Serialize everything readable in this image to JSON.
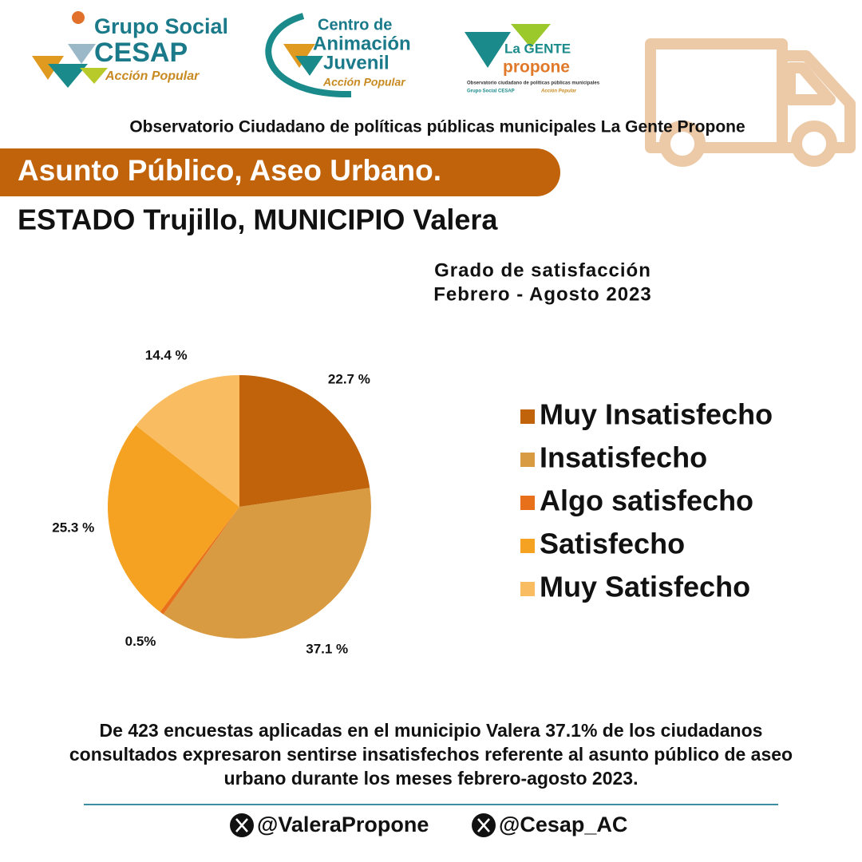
{
  "header": {
    "logo_cesap": [
      "Grupo Social",
      "CESAP",
      "Acción Popular"
    ],
    "logo_caj": [
      "Centro de",
      "Animación",
      "Juvenil",
      "Acción Popular"
    ],
    "logo_lgp": [
      "La GENTE",
      "propone",
      "Observatorio ciudadano de políticas públicas municipales",
      "Grupo Social CESAP",
      "Acción Popular"
    ],
    "observatory": "Observatorio Ciudadano de políticas públicas municipales La Gente Propone"
  },
  "banner": "Asunto Público, Aseo Urbano.",
  "location": "ESTADO Trujillo, MUNICIPIO Valera",
  "chart_data": {
    "type": "pie",
    "title": "Grado de satisfacción",
    "subtitle": "Febrero - Agosto 2023",
    "categories": [
      "Muy Insatisfecho",
      "Insatisfecho",
      "Algo satisfecho",
      "Satisfecho",
      "Muy Satisfecho"
    ],
    "values": [
      22.7,
      37.1,
      0.5,
      25.3,
      14.4
    ],
    "value_labels": [
      "22.7 %",
      "37.1 %",
      "0.5%",
      "25.3 %",
      "14.4 %"
    ],
    "colors": [
      "#c0630b",
      "#d89b42",
      "#e8701a",
      "#f5a122",
      "#f9bc60"
    ],
    "legend": "right"
  },
  "summary": "De 423 encuestas aplicadas en el municipio Valera 37.1% de los ciudadanos consultados expresaron sentirse insatisfechos referente al asunto público de aseo urbano durante los meses febrero-agosto 2023.",
  "footer": [
    "@ValeraPropone",
    "@Cesap_AC"
  ]
}
